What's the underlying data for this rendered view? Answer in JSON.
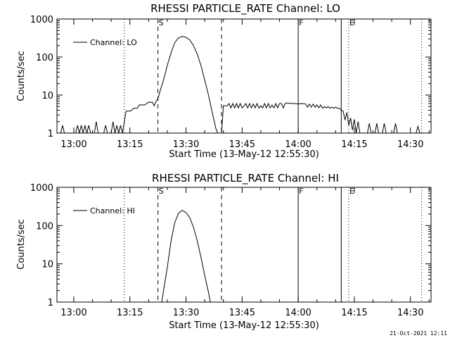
{
  "chart_data": [
    {
      "type": "line",
      "title": "RHESSI PARTICLE_RATE Channel: LO",
      "xlabel": "Start Time (13-May-12 12:55:30)",
      "ylabel": "Counts/sec",
      "y_scale": "log",
      "ylim": [
        1,
        1000
      ],
      "xlim": [
        "12:55:30",
        "14:35:30"
      ],
      "yticks": [
        "1",
        "10",
        "100",
        "1000"
      ],
      "xticks": [
        "13:00",
        "13:15",
        "13:30",
        "13:45",
        "14:00",
        "14:15",
        "14:30"
      ],
      "legend": {
        "label": "Channel: LO",
        "position": "top-left"
      },
      "grid": false,
      "markers": [
        {
          "time": "13:13:30",
          "style": "dotted",
          "label": ""
        },
        {
          "time": "13:22:30",
          "style": "dashed",
          "label": "S"
        },
        {
          "time": "13:39:30",
          "style": "dashed",
          "label": ""
        },
        {
          "time": "14:00:00",
          "style": "solid",
          "label": "F"
        },
        {
          "time": "14:11:30",
          "style": "solid",
          "label": ""
        },
        {
          "time": "14:13:30",
          "style": "dotted",
          "label": "E"
        },
        {
          "time": "14:33:00",
          "style": "dotted",
          "label": ""
        }
      ],
      "series": [
        {
          "name": "Channel: LO",
          "points": [
            [
              "12:56:30",
              1.0
            ],
            [
              "12:57:00",
              1.6
            ],
            [
              "12:57:30",
              1.0
            ],
            [
              "13:00:30",
              1.0
            ],
            [
              "13:01:00",
              1.6
            ],
            [
              "13:01:30",
              1.0
            ],
            [
              "13:02:00",
              1.6
            ],
            [
              "13:02:30",
              1.0
            ],
            [
              "13:03:00",
              1.6
            ],
            [
              "13:03:30",
              1.0
            ],
            [
              "13:04:00",
              1.6
            ],
            [
              "13:04:30",
              1.0
            ],
            [
              "13:05:30",
              1.0
            ],
            [
              "13:06:00",
              2.0
            ],
            [
              "13:06:30",
              1.0
            ],
            [
              "13:08:00",
              1.0
            ],
            [
              "13:08:30",
              1.6
            ],
            [
              "13:09:00",
              1.0
            ],
            [
              "13:10:00",
              1.0
            ],
            [
              "13:10:30",
              2.0
            ],
            [
              "13:11:00",
              1.0
            ],
            [
              "13:11:30",
              1.6
            ],
            [
              "13:12:00",
              1.0
            ],
            [
              "13:12:30",
              1.6
            ],
            [
              "13:13:00",
              1.0
            ],
            [
              "13:13:30",
              2.0
            ],
            [
              "13:14:00",
              3.8
            ],
            [
              "13:15:00",
              3.8
            ],
            [
              "13:15:30",
              4.0
            ],
            [
              "13:16:00",
              4.5
            ],
            [
              "13:17:00",
              4.5
            ],
            [
              "13:17:30",
              5.5
            ],
            [
              "13:19:00",
              5.5
            ],
            [
              "13:19:30",
              6.0
            ],
            [
              "13:20:00",
              6.5
            ],
            [
              "13:21:00",
              6.5
            ],
            [
              "13:21:30",
              5.2
            ],
            [
              "13:22:00",
              6.8
            ],
            [
              "13:22:30",
              8.0
            ],
            [
              "13:23:00",
              12
            ],
            [
              "13:24:00",
              25
            ],
            [
              "13:25:00",
              60
            ],
            [
              "13:26:00",
              130
            ],
            [
              "13:27:00",
              240
            ],
            [
              "13:28:00",
              320
            ],
            [
              "13:29:00",
              350
            ],
            [
              "13:30:00",
              330
            ],
            [
              "13:31:00",
              280
            ],
            [
              "13:32:00",
              200
            ],
            [
              "13:33:00",
              120
            ],
            [
              "13:34:00",
              60
            ],
            [
              "13:35:00",
              25
            ],
            [
              "13:36:00",
              10
            ],
            [
              "13:37:00",
              3.5
            ],
            [
              "13:38:00",
              1.3
            ],
            [
              "13:38:30",
              1.0
            ],
            [
              "13:39:30",
              1.0
            ],
            [
              "13:40:00",
              5.2
            ],
            [
              "13:41:00",
              5.2
            ],
            [
              "13:41:30",
              6.0
            ],
            [
              "13:42:00",
              4.6
            ],
            [
              "13:42:30",
              6.0
            ],
            [
              "13:43:00",
              4.6
            ],
            [
              "13:43:30",
              6.0
            ],
            [
              "13:44:00",
              4.6
            ],
            [
              "13:44:30",
              6.0
            ],
            [
              "13:45:00",
              4.6
            ],
            [
              "13:45:30",
              5.2
            ],
            [
              "13:46:00",
              6.0
            ],
            [
              "13:46:30",
              4.6
            ],
            [
              "13:47:00",
              6.0
            ],
            [
              "13:47:30",
              4.6
            ],
            [
              "13:48:00",
              5.8
            ],
            [
              "13:48:30",
              4.6
            ],
            [
              "13:49:00",
              6.0
            ],
            [
              "13:49:30",
              4.6
            ],
            [
              "13:50:00",
              5.2
            ],
            [
              "13:50:30",
              4.6
            ],
            [
              "13:51:00",
              6.0
            ],
            [
              "13:51:30",
              4.6
            ],
            [
              "13:52:00",
              6.0
            ],
            [
              "13:52:30",
              4.6
            ],
            [
              "13:53:00",
              5.5
            ],
            [
              "13:53:30",
              4.6
            ],
            [
              "13:54:00",
              6.0
            ],
            [
              "13:54:30",
              4.6
            ],
            [
              "13:55:00",
              6.0
            ],
            [
              "13:55:30",
              6.0
            ],
            [
              "13:56:00",
              4.6
            ],
            [
              "13:56:30",
              6.0
            ],
            [
              "13:57:00",
              6.2
            ],
            [
              "13:58:00",
              6.0
            ],
            [
              "13:59:00",
              6.0
            ],
            [
              "14:00:00",
              5.8
            ],
            [
              "14:01:00",
              6.0
            ],
            [
              "14:02:00",
              5.8
            ],
            [
              "14:02:30",
              4.8
            ],
            [
              "14:03:00",
              5.8
            ],
            [
              "14:03:30",
              4.8
            ],
            [
              "14:04:00",
              5.8
            ],
            [
              "14:04:30",
              4.8
            ],
            [
              "14:05:00",
              5.5
            ],
            [
              "14:05:30",
              4.6
            ],
            [
              "14:06:00",
              5.5
            ],
            [
              "14:06:30",
              4.5
            ],
            [
              "14:07:00",
              5.0
            ],
            [
              "14:07:30",
              4.6
            ],
            [
              "14:08:00",
              5.0
            ],
            [
              "14:08:30",
              4.5
            ],
            [
              "14:09:00",
              4.8
            ],
            [
              "14:09:30",
              4.5
            ],
            [
              "14:10:00",
              4.8
            ],
            [
              "14:10:30",
              4.5
            ],
            [
              "14:11:00",
              4.5
            ],
            [
              "14:11:30",
              4.0
            ],
            [
              "14:12:00",
              3.8
            ],
            [
              "14:12:30",
              2.2
            ],
            [
              "14:13:00",
              3.5
            ],
            [
              "14:13:30",
              1.6
            ],
            [
              "14:14:00",
              2.5
            ],
            [
              "14:14:30",
              1.2
            ],
            [
              "14:15:00",
              2.3
            ],
            [
              "14:15:30",
              1.0
            ],
            [
              "14:16:00",
              2.0
            ],
            [
              "14:16:30",
              1.0
            ],
            [
              "14:18:30",
              1.0
            ],
            [
              "14:19:00",
              1.8
            ],
            [
              "14:19:30",
              1.0
            ],
            [
              "14:20:30",
              1.0
            ],
            [
              "14:21:00",
              1.8
            ],
            [
              "14:21:30",
              1.0
            ],
            [
              "14:22:30",
              1.0
            ],
            [
              "14:23:00",
              1.8
            ],
            [
              "14:23:30",
              1.0
            ],
            [
              "14:25:30",
              1.0
            ],
            [
              "14:26:00",
              1.8
            ],
            [
              "14:26:30",
              1.0
            ],
            [
              "14:31:30",
              1.0
            ],
            [
              "14:32:00",
              1.5
            ],
            [
              "14:32:30",
              1.0
            ]
          ]
        }
      ]
    },
    {
      "type": "line",
      "title": "RHESSI PARTICLE_RATE Channel: HI",
      "xlabel": "Start Time (13-May-12 12:55:30)",
      "ylabel": "Counts/sec",
      "y_scale": "log",
      "ylim": [
        1,
        1000
      ],
      "xlim": [
        "12:55:30",
        "14:35:30"
      ],
      "yticks": [
        "1",
        "10",
        "100",
        "1000"
      ],
      "xticks": [
        "13:00",
        "13:15",
        "13:30",
        "13:45",
        "14:00",
        "14:15",
        "14:30"
      ],
      "legend": {
        "label": "Channel: HI",
        "position": "top-left"
      },
      "grid": false,
      "markers": [
        {
          "time": "13:13:30",
          "style": "dotted",
          "label": ""
        },
        {
          "time": "13:22:30",
          "style": "dashed",
          "label": "S"
        },
        {
          "time": "13:39:30",
          "style": "dashed",
          "label": ""
        },
        {
          "time": "14:00:00",
          "style": "solid",
          "label": "F"
        },
        {
          "time": "14:11:30",
          "style": "solid",
          "label": ""
        },
        {
          "time": "14:13:30",
          "style": "dotted",
          "label": "E"
        },
        {
          "time": "14:33:00",
          "style": "dotted",
          "label": ""
        }
      ],
      "series": [
        {
          "name": "Channel: HI",
          "points": [
            [
              "13:23:30",
              1.0
            ],
            [
              "13:24:00",
              2.0
            ],
            [
              "13:25:00",
              8
            ],
            [
              "13:26:00",
              40
            ],
            [
              "13:27:00",
              120
            ],
            [
              "13:28:00",
              210
            ],
            [
              "13:29:00",
              250
            ],
            [
              "13:30:00",
              220
            ],
            [
              "13:31:00",
              160
            ],
            [
              "13:32:00",
              90
            ],
            [
              "13:33:00",
              40
            ],
            [
              "13:34:00",
              15
            ],
            [
              "13:35:00",
              5
            ],
            [
              "13:36:00",
              1.8
            ],
            [
              "13:36:30",
              1.0
            ]
          ]
        }
      ]
    }
  ],
  "footer": {
    "timestamp": "21-Oct-2021 12:11"
  }
}
